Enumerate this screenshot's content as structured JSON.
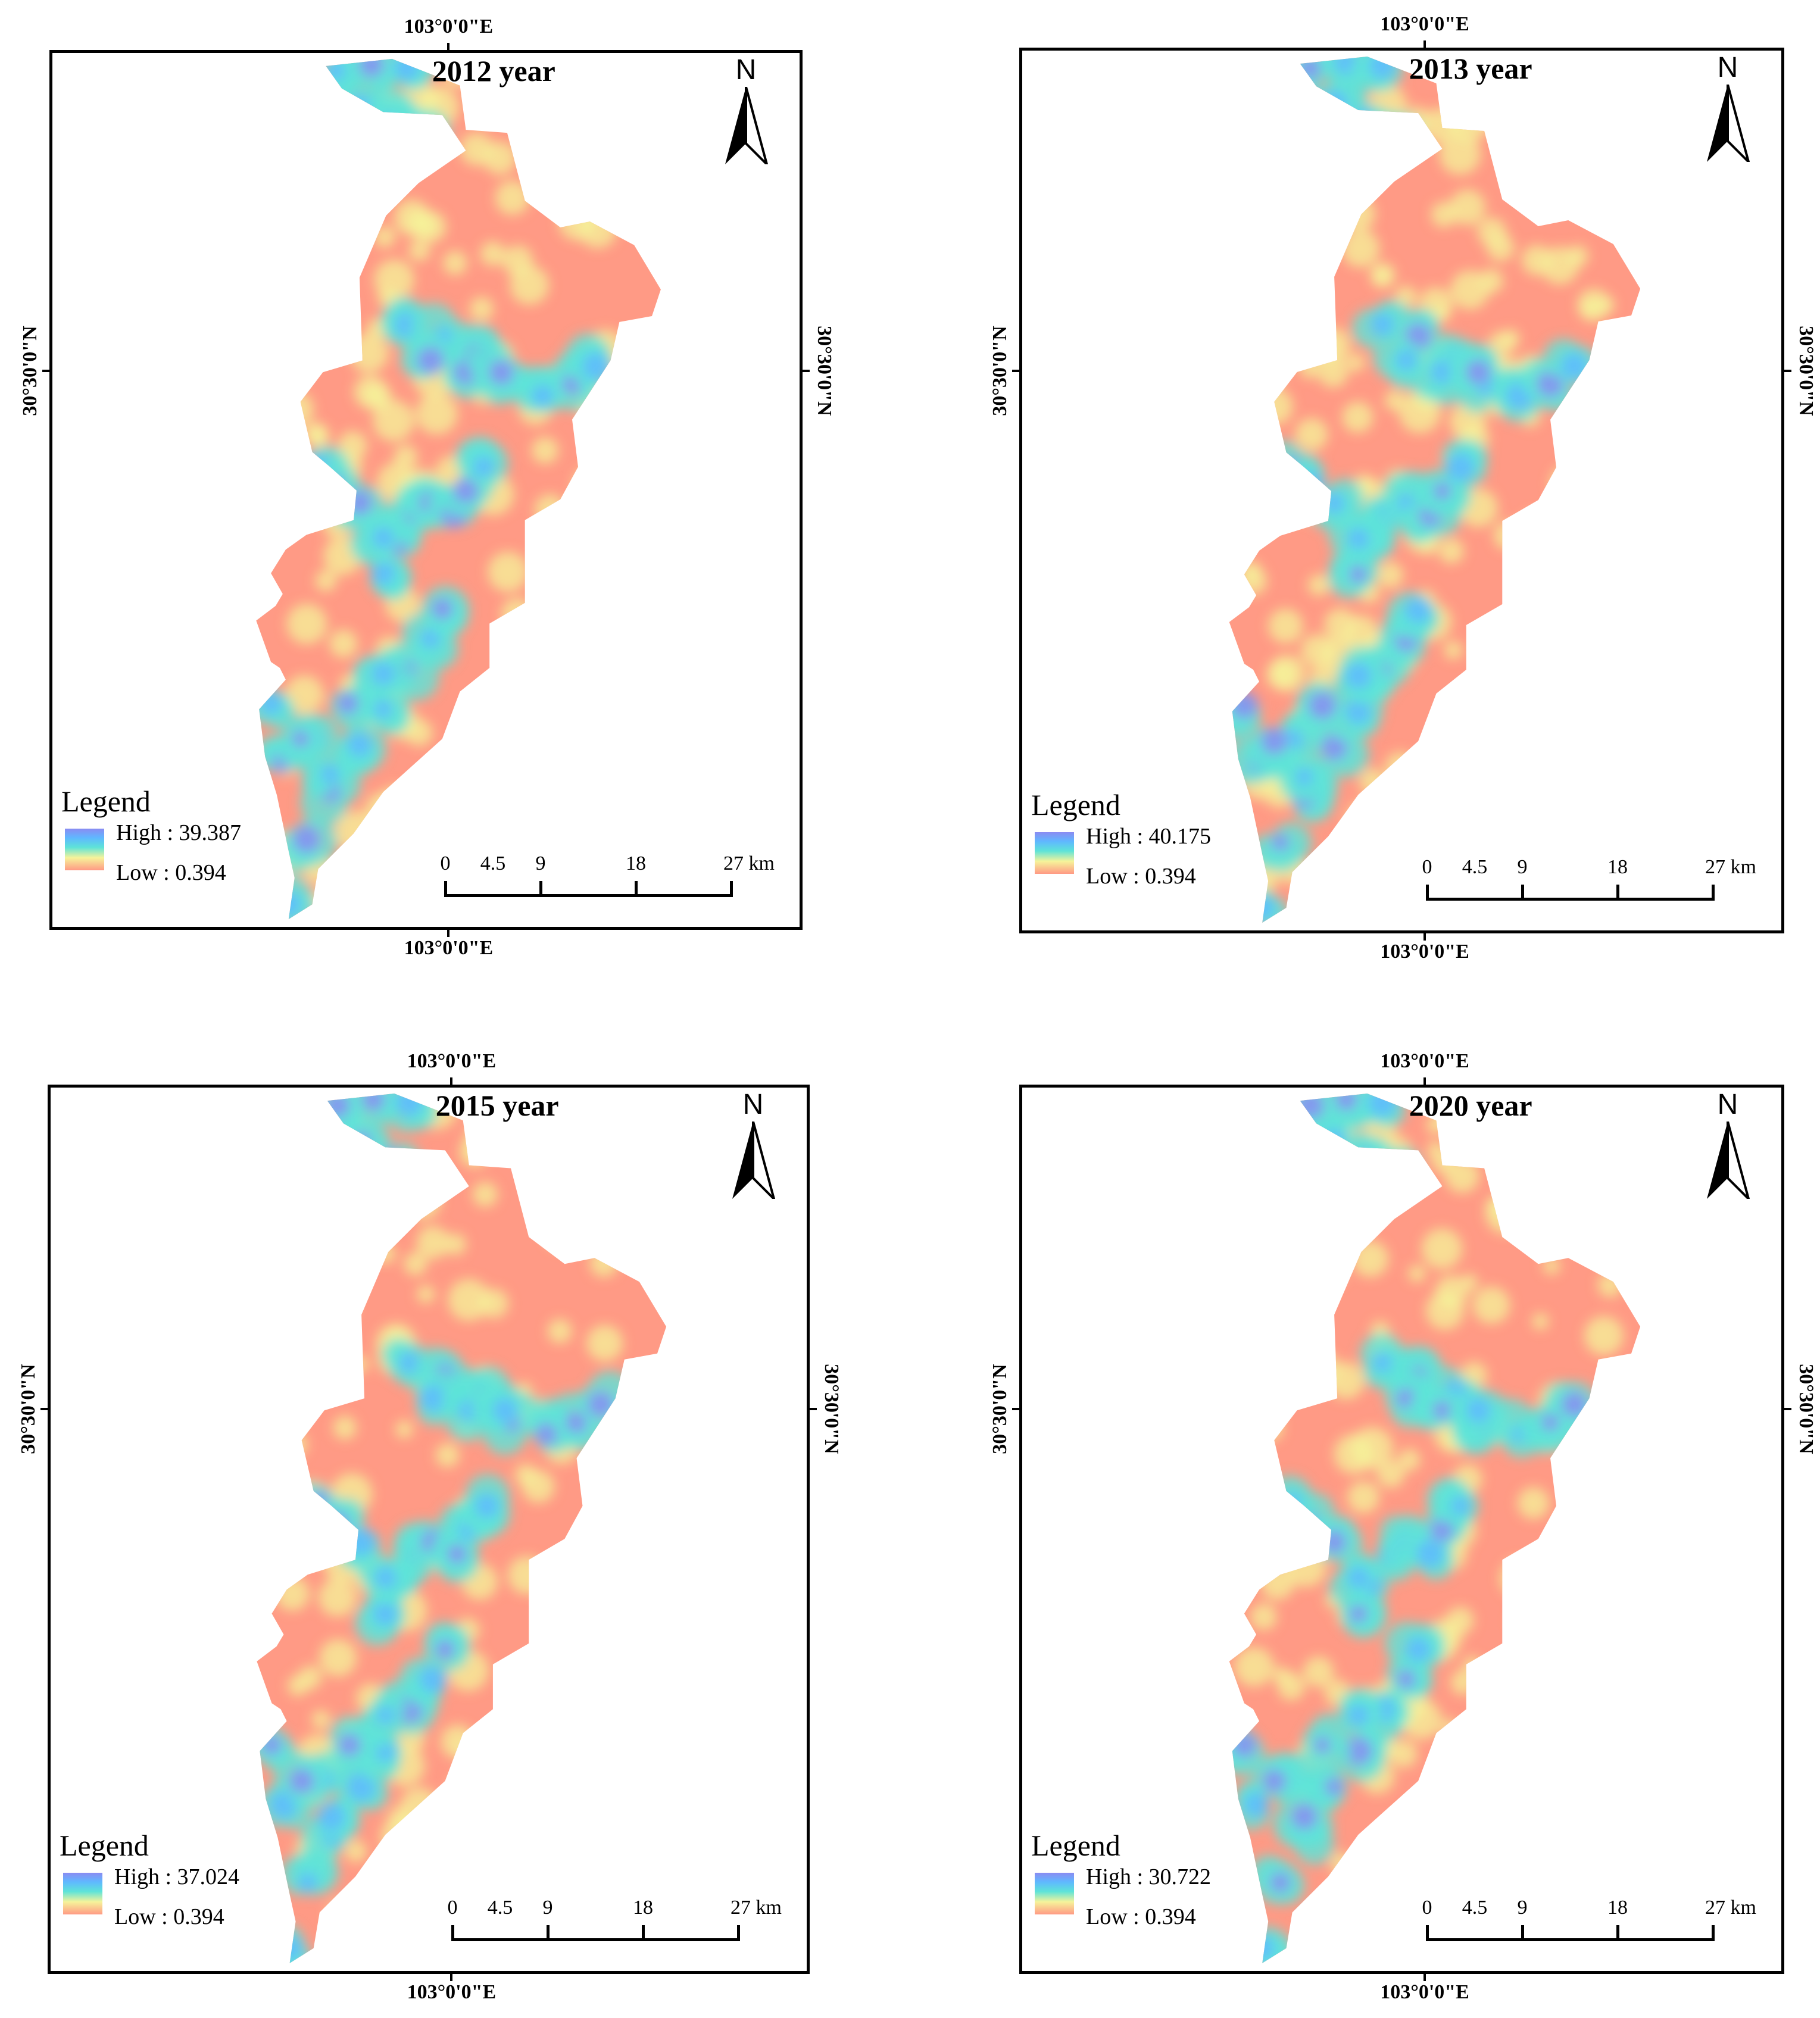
{
  "panels": [
    {
      "title": "2012 year",
      "lon_top": "103°0'0\"E",
      "lon_bottom": "103°0'0\"E",
      "lat_left": "30°30'0\"N",
      "lat_right": "30°30'0\"N",
      "north": "N",
      "legend_title": "Legend",
      "legend_high": "High : 39.387",
      "legend_low": "Low : 0.394",
      "scale": {
        "labels": [
          "0",
          "4.5",
          "9",
          "18",
          "27 km"
        ]
      }
    },
    {
      "title": "2013 year",
      "lon_top": "103°0'0\"E",
      "lon_bottom": "103°0'0\"E",
      "lat_left": "30°30'0\"N",
      "lat_right": "30°30'0\"N",
      "north": "N",
      "legend_title": "Legend",
      "legend_high": "High : 40.175",
      "legend_low": "Low : 0.394",
      "scale": {
        "labels": [
          "0",
          "4.5",
          "9",
          "18",
          "27 km"
        ]
      }
    },
    {
      "title": "2015 year",
      "lon_top": "103°0'0\"E",
      "lon_bottom": "103°0'0\"E",
      "lat_left": "30°30'0\"N",
      "lat_right": "30°30'0\"N",
      "north": "N",
      "legend_title": "Legend",
      "legend_high": "High : 37.024",
      "legend_low": "Low : 0.394",
      "scale": {
        "labels": [
          "0",
          "4.5",
          "9",
          "18",
          "27 km"
        ]
      }
    },
    {
      "title": "2020 year",
      "lon_top": "103°0'0\"E",
      "lon_bottom": "103°0'0\"E",
      "lat_left": "30°30'0\"N",
      "lat_right": "30°30'0\"N",
      "north": "N",
      "legend_title": "Legend",
      "legend_high": "High : 30.722",
      "legend_low": "Low : 0.394",
      "scale": {
        "labels": [
          "0",
          "4.5",
          "9",
          "18",
          "27 km"
        ]
      }
    }
  ],
  "colors": {
    "low": "#ff9a85",
    "mid_low": "#f6f39a",
    "mid": "#5ee3d8",
    "mid_high": "#5fb8ff",
    "high": "#8a8cf2"
  }
}
